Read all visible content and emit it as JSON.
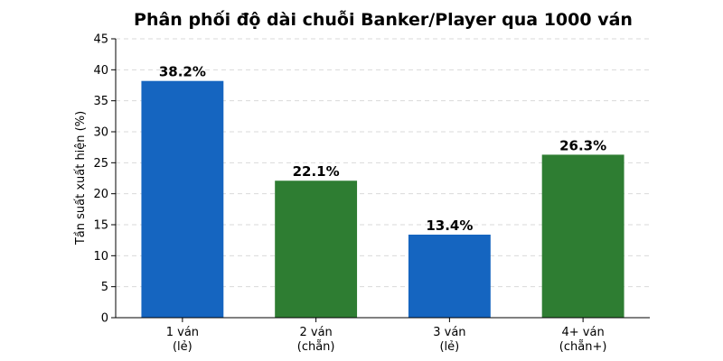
{
  "chart_data": {
    "type": "bar",
    "title": "Phân phối độ dài chuỗi Banker/Player qua 1000 ván",
    "xlabel": "",
    "ylabel": "Tần suất xuất hiện (%)",
    "ylim": [
      0,
      45
    ],
    "yticks": [
      0,
      5,
      10,
      15,
      20,
      25,
      30,
      35,
      40,
      45
    ],
    "grid": true,
    "categories": [
      [
        "1 ván",
        "(lẻ)"
      ],
      [
        "2 ván",
        "(chẵn)"
      ],
      [
        "3 ván",
        "(lẻ)"
      ],
      [
        "4+ ván",
        "(chẵn+)"
      ]
    ],
    "values": [
      38.2,
      22.1,
      13.4,
      26.3
    ],
    "data_labels": [
      "38.2%",
      "22.1%",
      "13.4%",
      "26.3%"
    ],
    "colors": [
      "#1565c0",
      "#2e7d32",
      "#1565c0",
      "#2e7d32"
    ]
  }
}
